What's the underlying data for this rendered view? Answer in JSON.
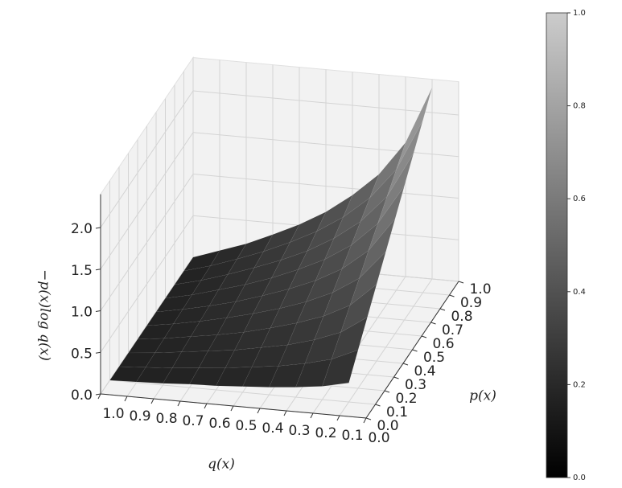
{
  "chart_data": {
    "type": "surface",
    "x_label": "q(x)",
    "y_label": "p(x)",
    "z_label": "−p(x)log q(x)",
    "x": [
      0.1,
      0.2,
      0.3,
      0.4,
      0.5,
      0.6,
      0.7,
      0.8,
      0.9,
      1.0
    ],
    "y": [
      0.1,
      0.2,
      0.3,
      0.4,
      0.5,
      0.6,
      0.7,
      0.8,
      0.9,
      1.0
    ],
    "z": [
      [
        0.23,
        0.16,
        0.12,
        0.09,
        0.07,
        0.05,
        0.04,
        0.02,
        0.01,
        0
      ],
      [
        0.46,
        0.32,
        0.24,
        0.18,
        0.14,
        0.1,
        0.07,
        0.04,
        0.02,
        0
      ],
      [
        0.69,
        0.48,
        0.36,
        0.27,
        0.21,
        0.15,
        0.11,
        0.07,
        0.03,
        0
      ],
      [
        0.92,
        0.64,
        0.48,
        0.37,
        0.28,
        0.2,
        0.14,
        0.09,
        0.04,
        0
      ],
      [
        1.15,
        0.8,
        0.6,
        0.46,
        0.35,
        0.26,
        0.18,
        0.11,
        0.05,
        0
      ],
      [
        1.38,
        0.97,
        0.72,
        0.55,
        0.42,
        0.31,
        0.21,
        0.13,
        0.06,
        0
      ],
      [
        1.61,
        1.13,
        0.84,
        0.64,
        0.49,
        0.36,
        0.25,
        0.16,
        0.07,
        0
      ],
      [
        1.84,
        1.29,
        0.96,
        0.73,
        0.55,
        0.41,
        0.29,
        0.18,
        0.08,
        0
      ],
      [
        2.07,
        1.45,
        1.08,
        0.82,
        0.62,
        0.46,
        0.32,
        0.2,
        0.09,
        0
      ],
      [
        2.3,
        1.61,
        1.2,
        0.92,
        0.69,
        0.51,
        0.36,
        0.22,
        0.11,
        0
      ]
    ],
    "xlim": [
      0,
      1
    ],
    "ylim": [
      0,
      1
    ],
    "zlim": [
      0,
      2.4
    ],
    "xticks": [
      {
        "value": 0,
        "label": "0.0"
      },
      {
        "value": 0.1,
        "label": "0.1"
      },
      {
        "value": 0.2,
        "label": "0.2"
      },
      {
        "value": 0.3,
        "label": "0.3"
      },
      {
        "value": 0.4,
        "label": "0.4"
      },
      {
        "value": 0.5,
        "label": "0.5"
      },
      {
        "value": 0.6,
        "label": "0.6"
      },
      {
        "value": 0.7,
        "label": "0.7"
      },
      {
        "value": 0.8,
        "label": "0.8"
      },
      {
        "value": 0.9,
        "label": "0.9"
      },
      {
        "value": 1,
        "label": "1.0"
      }
    ],
    "yticks": [
      {
        "value": 0,
        "label": "0.0"
      },
      {
        "value": 0.1,
        "label": "0.1"
      },
      {
        "value": 0.2,
        "label": "0.2"
      },
      {
        "value": 0.3,
        "label": "0.3"
      },
      {
        "value": 0.4,
        "label": "0.4"
      },
      {
        "value": 0.5,
        "label": "0.5"
      },
      {
        "value": 0.6,
        "label": "0.6"
      },
      {
        "value": 0.7,
        "label": "0.7"
      },
      {
        "value": 0.8,
        "label": "0.8"
      },
      {
        "value": 0.9,
        "label": "0.9"
      },
      {
        "value": 1,
        "label": "1.0"
      }
    ],
    "zticks": [
      {
        "value": 0,
        "label": "0.0"
      },
      {
        "value": 0.5,
        "label": "0.5"
      },
      {
        "value": 1,
        "label": "1.0"
      },
      {
        "value": 1.5,
        "label": "1.5"
      },
      {
        "value": 2,
        "label": "2.0"
      }
    ],
    "grid": true,
    "pane_color": "#f2f2f2",
    "colorbar": {
      "cmap": "gray",
      "colors": [
        "#000000",
        "#cccccc"
      ],
      "lim": [
        0,
        1
      ],
      "ticks": [
        {
          "value": 0,
          "label": "0.0"
        },
        {
          "value": 0.2,
          "label": "0.2"
        },
        {
          "value": 0.4,
          "label": "0.4"
        },
        {
          "value": 0.6,
          "label": "0.6"
        },
        {
          "value": 0.8,
          "label": "0.8"
        },
        {
          "value": 1,
          "label": "1.0"
        }
      ]
    }
  }
}
